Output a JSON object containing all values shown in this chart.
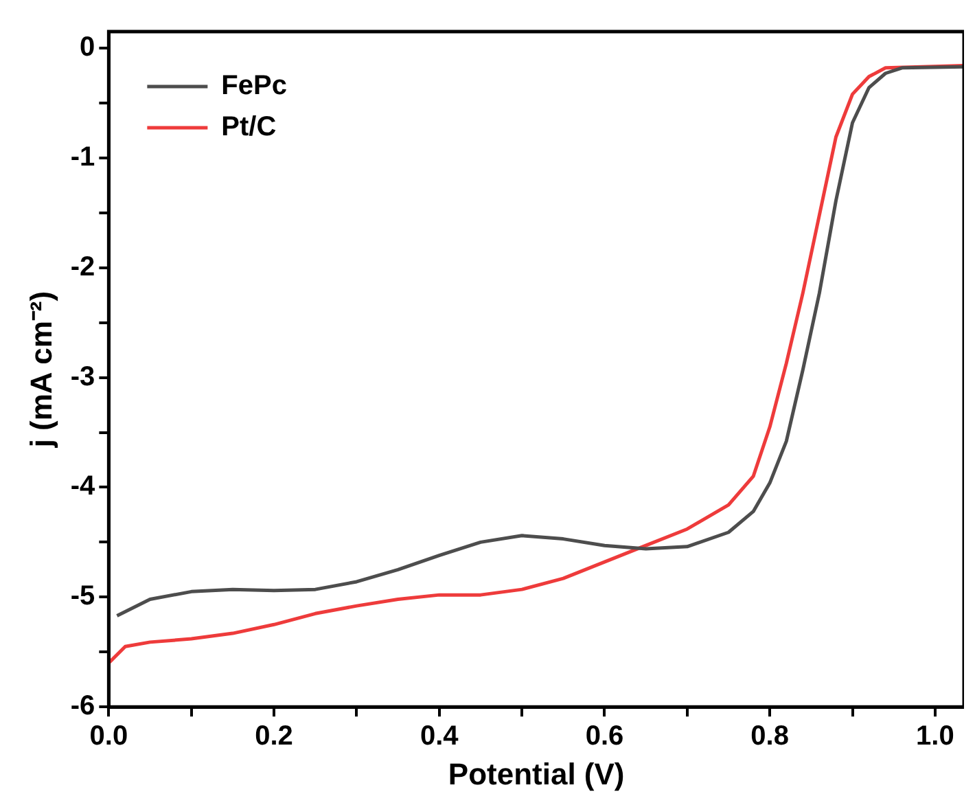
{
  "chart_data": {
    "type": "line",
    "xlabel": "Potential (V)",
    "ylabel": "j (mA cm⁻²)",
    "xlim": [
      0,
      1.035
    ],
    "ylim": [
      -6,
      0.15
    ],
    "xticks": [
      {
        "value": 0,
        "label": "0.0"
      },
      {
        "value": 0.1,
        "label": null
      },
      {
        "value": 0.2,
        "label": "0.2"
      },
      {
        "value": 0.3,
        "label": null
      },
      {
        "value": 0.4,
        "label": "0.4"
      },
      {
        "value": 0.5,
        "label": null
      },
      {
        "value": 0.6,
        "label": "0.6"
      },
      {
        "value": 0.7,
        "label": null
      },
      {
        "value": 0.8,
        "label": "0.8"
      },
      {
        "value": 0.9,
        "label": null
      },
      {
        "value": 1.0,
        "label": "1.0"
      }
    ],
    "yticks": [
      -6,
      {
        "value": -5.5,
        "label": null
      },
      -5,
      {
        "value": -4.5,
        "label": null
      },
      -4,
      {
        "value": -3.5,
        "label": null
      },
      -3,
      {
        "value": -2.5,
        "label": null
      },
      -2,
      {
        "value": -1.5,
        "label": null
      },
      -1,
      {
        "value": -0.5,
        "label": null
      },
      0
    ],
    "grid": false,
    "legend": "top left",
    "line_style": "solid",
    "marker": "none",
    "series": [
      {
        "name": "FePc",
        "color": "#4d4d4d",
        "x": [
          0.01,
          0.05,
          0.1,
          0.15,
          0.2,
          0.25,
          0.3,
          0.35,
          0.4,
          0.45,
          0.5,
          0.55,
          0.6,
          0.65,
          0.7,
          0.75,
          0.78,
          0.8,
          0.82,
          0.84,
          0.86,
          0.88,
          0.9,
          0.92,
          0.94,
          0.96,
          1.035
        ],
        "values": [
          -5.17,
          -5.02,
          -4.95,
          -4.93,
          -4.94,
          -4.93,
          -4.86,
          -4.75,
          -4.62,
          -4.5,
          -4.44,
          -4.47,
          -4.53,
          -4.56,
          -4.54,
          -4.41,
          -4.22,
          -3.96,
          -3.58,
          -2.93,
          -2.23,
          -1.39,
          -0.68,
          -0.36,
          -0.23,
          -0.18,
          -0.17
        ]
      },
      {
        "name": "Pt/C",
        "color": "#ee3b3b",
        "x": [
          0,
          0.02,
          0.05,
          0.1,
          0.15,
          0.2,
          0.25,
          0.3,
          0.35,
          0.4,
          0.45,
          0.5,
          0.55,
          0.6,
          0.65,
          0.7,
          0.75,
          0.78,
          0.8,
          0.82,
          0.84,
          0.86,
          0.88,
          0.9,
          0.92,
          0.94,
          1.035
        ],
        "values": [
          -5.6,
          -5.45,
          -5.41,
          -5.38,
          -5.33,
          -5.25,
          -5.15,
          -5.08,
          -5.02,
          -4.98,
          -4.98,
          -4.93,
          -4.83,
          -4.68,
          -4.53,
          -4.38,
          -4.16,
          -3.9,
          -3.45,
          -2.87,
          -2.23,
          -1.52,
          -0.81,
          -0.42,
          -0.26,
          -0.18,
          -0.16
        ]
      }
    ]
  }
}
